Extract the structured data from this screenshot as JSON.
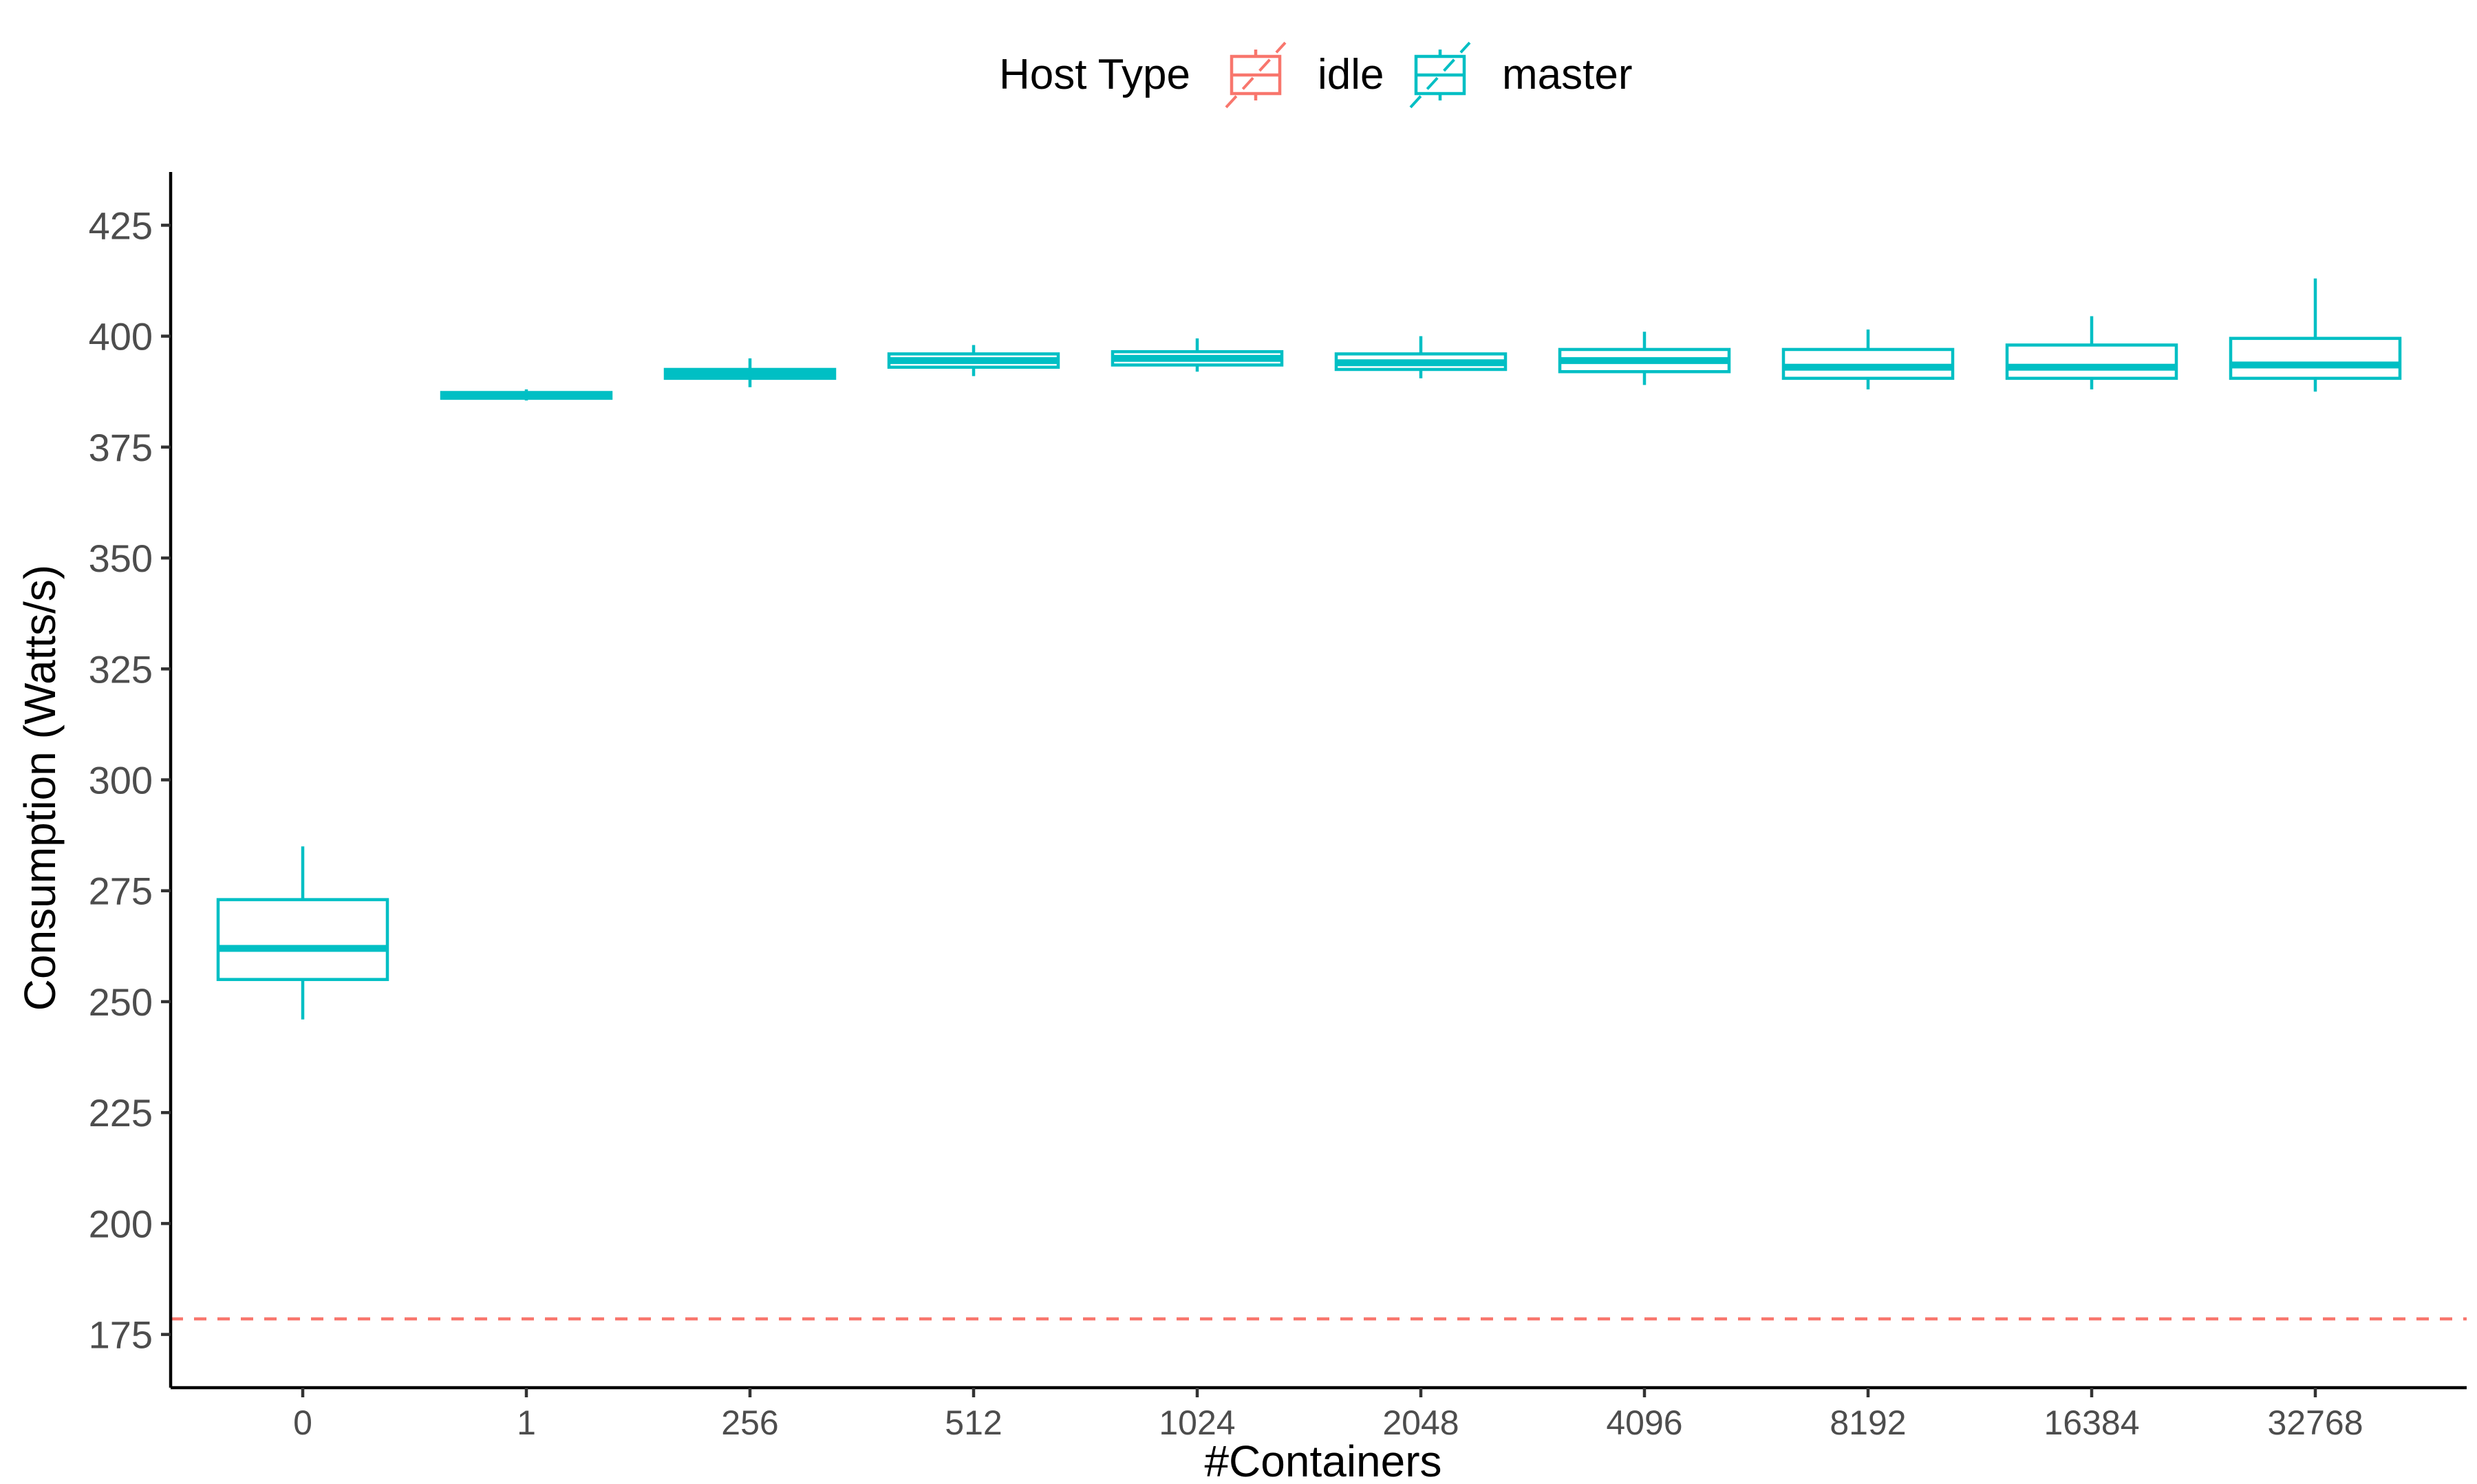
{
  "chart_data": {
    "type": "boxplot",
    "xlabel": "#Containers",
    "ylabel": "Consumption (Watts/s)",
    "ylim": [
      163,
      437
    ],
    "yticks": [
      175,
      200,
      225,
      250,
      275,
      300,
      325,
      350,
      375,
      400,
      425
    ],
    "categories": [
      "0",
      "1",
      "256",
      "512",
      "1024",
      "2048",
      "4096",
      "8192",
      "16384",
      "32768"
    ],
    "legend": {
      "title": "Host Type",
      "position": "top",
      "entries": [
        {
          "label": "idle",
          "color": "#F8766D"
        },
        {
          "label": "master",
          "color": "#00BFC4"
        }
      ]
    },
    "series": [
      {
        "name": "master",
        "color": "#00BFC4",
        "boxes": [
          {
            "category": "0",
            "min": 246,
            "q1": 255,
            "median": 262,
            "q3": 273,
            "max": 285
          },
          {
            "category": "1",
            "min": 385.5,
            "q1": 386,
            "median": 386.8,
            "q3": 387.3,
            "max": 388
          },
          {
            "category": "256",
            "min": 388.5,
            "q1": 390.5,
            "median": 391.5,
            "q3": 392.5,
            "max": 395
          },
          {
            "category": "512",
            "min": 391,
            "q1": 393,
            "median": 394.5,
            "q3": 396,
            "max": 398
          },
          {
            "category": "1024",
            "min": 392,
            "q1": 393.5,
            "median": 395,
            "q3": 396.5,
            "max": 399.5
          },
          {
            "category": "2048",
            "min": 390.5,
            "q1": 392.5,
            "median": 394,
            "q3": 396,
            "max": 400
          },
          {
            "category": "4096",
            "min": 389,
            "q1": 392,
            "median": 394.5,
            "q3": 397,
            "max": 401
          },
          {
            "category": "8192",
            "min": 388,
            "q1": 390.5,
            "median": 393,
            "q3": 397,
            "max": 401.5
          },
          {
            "category": "16384",
            "min": 388,
            "q1": 390.5,
            "median": 393,
            "q3": 398,
            "max": 404.5
          },
          {
            "category": "32768",
            "min": 387.5,
            "q1": 390.5,
            "median": 393.5,
            "q3": 399.5,
            "max": 413
          }
        ]
      }
    ],
    "reference_lines": [
      {
        "name": "idle",
        "y": 178.5,
        "style": "dashed",
        "color": "#F8766D"
      }
    ],
    "grid": false
  }
}
